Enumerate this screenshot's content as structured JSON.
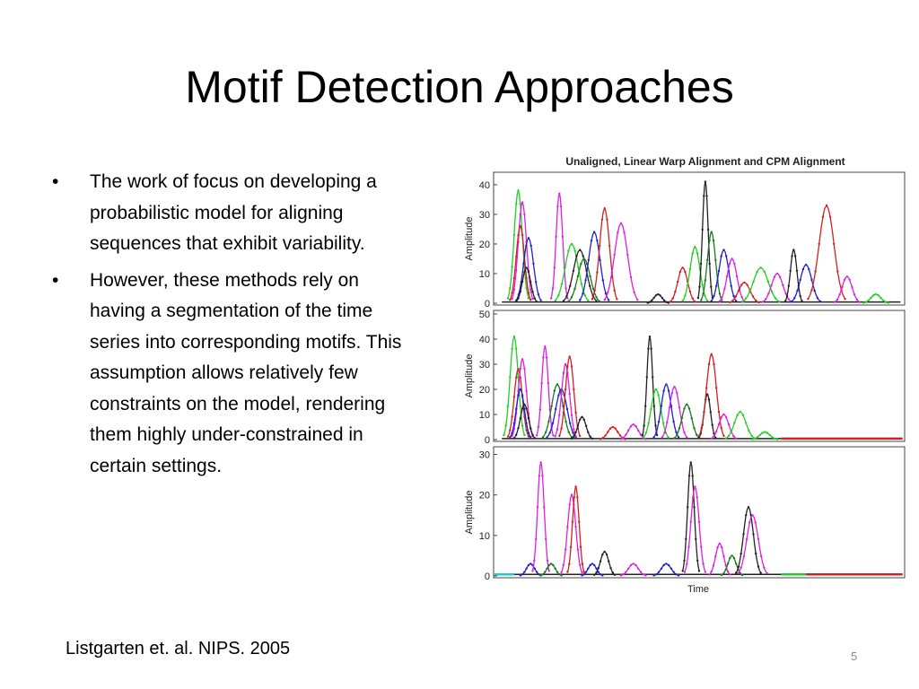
{
  "slide": {
    "title": "Motif Detection Approaches",
    "bullets": [
      "The work of focus on developing a probabilistic model for aligning sequences that exhibit variability.",
      "However, these methods rely on having a segmentation of the time series into corresponding motifs. This assumption allows relatively few constraints on the model, rendering them highly under-constrained in certain settings."
    ],
    "bullet_glyph": "•",
    "citation": "Listgarten et. al. NIPS. 2005",
    "page_number": "5"
  },
  "figure": {
    "title": "Unaligned, Linear Warp Alignment and CPM Alignment",
    "ylabel": "Amplitude",
    "xlabel": "Time",
    "series_colors": [
      "#d22020",
      "#1a7a1a",
      "#2020d0",
      "#222222",
      "#e020e0",
      "#20d020",
      "#20c8d8"
    ],
    "panels": [
      {
        "name": "unaligned",
        "yticks": [
          "0",
          "10",
          "20",
          "30",
          "40"
        ],
        "ylim": [
          0,
          43
        ],
        "peaks": [
          {
            "x": 0.06,
            "h": 38,
            "w": 0.01,
            "c": 5
          },
          {
            "x": 0.07,
            "h": 34,
            "w": 0.01,
            "c": 4
          },
          {
            "x": 0.065,
            "h": 26,
            "w": 0.01,
            "c": 0
          },
          {
            "x": 0.085,
            "h": 22,
            "w": 0.012,
            "c": 2
          },
          {
            "x": 0.08,
            "h": 12,
            "w": 0.01,
            "c": 3
          },
          {
            "x": 0.16,
            "h": 37,
            "w": 0.008,
            "c": 4
          },
          {
            "x": 0.19,
            "h": 20,
            "w": 0.016,
            "c": 5
          },
          {
            "x": 0.21,
            "h": 18,
            "w": 0.016,
            "c": 3
          },
          {
            "x": 0.22,
            "h": 15,
            "w": 0.015,
            "c": 1
          },
          {
            "x": 0.245,
            "h": 24,
            "w": 0.014,
            "c": 2
          },
          {
            "x": 0.27,
            "h": 32,
            "w": 0.012,
            "c": 0
          },
          {
            "x": 0.31,
            "h": 27,
            "w": 0.016,
            "c": 4
          },
          {
            "x": 0.4,
            "h": 3,
            "w": 0.01,
            "c": 3
          },
          {
            "x": 0.46,
            "h": 12,
            "w": 0.012,
            "c": 0
          },
          {
            "x": 0.49,
            "h": 19,
            "w": 0.012,
            "c": 5
          },
          {
            "x": 0.515,
            "h": 41,
            "w": 0.007,
            "c": 3
          },
          {
            "x": 0.53,
            "h": 24,
            "w": 0.01,
            "c": 1
          },
          {
            "x": 0.56,
            "h": 18,
            "w": 0.012,
            "c": 2
          },
          {
            "x": 0.58,
            "h": 15,
            "w": 0.012,
            "c": 4
          },
          {
            "x": 0.61,
            "h": 7,
            "w": 0.014,
            "c": 0
          },
          {
            "x": 0.65,
            "h": 12,
            "w": 0.018,
            "c": 5
          },
          {
            "x": 0.69,
            "h": 10,
            "w": 0.014,
            "c": 4
          },
          {
            "x": 0.73,
            "h": 18,
            "w": 0.008,
            "c": 3
          },
          {
            "x": 0.76,
            "h": 13,
            "w": 0.014,
            "c": 2
          },
          {
            "x": 0.81,
            "h": 33,
            "w": 0.018,
            "c": 0
          },
          {
            "x": 0.86,
            "h": 9,
            "w": 0.012,
            "c": 4
          },
          {
            "x": 0.93,
            "h": 3,
            "w": 0.012,
            "c": 5
          }
        ]
      },
      {
        "name": "linear-warp",
        "yticks": [
          "0",
          "10",
          "20",
          "30",
          "40",
          "50"
        ],
        "ylim": [
          0,
          50
        ],
        "peaks": [
          {
            "x": 0.05,
            "h": 41,
            "w": 0.01,
            "c": 5
          },
          {
            "x": 0.06,
            "h": 28,
            "w": 0.01,
            "c": 0
          },
          {
            "x": 0.07,
            "h": 32,
            "w": 0.01,
            "c": 4
          },
          {
            "x": 0.065,
            "h": 20,
            "w": 0.01,
            "c": 2
          },
          {
            "x": 0.075,
            "h": 14,
            "w": 0.01,
            "c": 3
          },
          {
            "x": 0.125,
            "h": 37,
            "w": 0.008,
            "c": 4
          },
          {
            "x": 0.155,
            "h": 22,
            "w": 0.014,
            "c": 1
          },
          {
            "x": 0.165,
            "h": 20,
            "w": 0.014,
            "c": 2
          },
          {
            "x": 0.175,
            "h": 30,
            "w": 0.01,
            "c": 4
          },
          {
            "x": 0.185,
            "h": 33,
            "w": 0.01,
            "c": 0
          },
          {
            "x": 0.215,
            "h": 9,
            "w": 0.01,
            "c": 3
          },
          {
            "x": 0.29,
            "h": 5,
            "w": 0.012,
            "c": 0
          },
          {
            "x": 0.34,
            "h": 6,
            "w": 0.012,
            "c": 4
          },
          {
            "x": 0.38,
            "h": 41,
            "w": 0.007,
            "c": 3
          },
          {
            "x": 0.395,
            "h": 20,
            "w": 0.012,
            "c": 5
          },
          {
            "x": 0.42,
            "h": 22,
            "w": 0.012,
            "c": 2
          },
          {
            "x": 0.44,
            "h": 21,
            "w": 0.012,
            "c": 4
          },
          {
            "x": 0.47,
            "h": 14,
            "w": 0.012,
            "c": 1
          },
          {
            "x": 0.52,
            "h": 18,
            "w": 0.008,
            "c": 3
          },
          {
            "x": 0.53,
            "h": 34,
            "w": 0.012,
            "c": 0
          },
          {
            "x": 0.56,
            "h": 10,
            "w": 0.012,
            "c": 4
          },
          {
            "x": 0.6,
            "h": 11,
            "w": 0.014,
            "c": 5
          },
          {
            "x": 0.66,
            "h": 3,
            "w": 0.012,
            "c": 5
          }
        ],
        "tail": {
          "from": 0.7,
          "color": 0
        }
      },
      {
        "name": "cpm-alignment",
        "yticks": [
          "0",
          "10",
          "20",
          "30"
        ],
        "ylim": [
          0,
          31
        ],
        "peaks": [
          {
            "x": 0.09,
            "h": 3,
            "w": 0.01,
            "c": 2
          },
          {
            "x": 0.115,
            "h": 28,
            "w": 0.008,
            "c": 4
          },
          {
            "x": 0.14,
            "h": 3,
            "w": 0.01,
            "c": 1
          },
          {
            "x": 0.19,
            "h": 20,
            "w": 0.01,
            "c": 4
          },
          {
            "x": 0.2,
            "h": 22,
            "w": 0.008,
            "c": 0
          },
          {
            "x": 0.24,
            "h": 3,
            "w": 0.01,
            "c": 2
          },
          {
            "x": 0.27,
            "h": 6,
            "w": 0.01,
            "c": 3
          },
          {
            "x": 0.34,
            "h": 3,
            "w": 0.012,
            "c": 4
          },
          {
            "x": 0.42,
            "h": 3,
            "w": 0.012,
            "c": 2
          },
          {
            "x": 0.48,
            "h": 28,
            "w": 0.008,
            "c": 3
          },
          {
            "x": 0.49,
            "h": 22,
            "w": 0.01,
            "c": 4
          },
          {
            "x": 0.55,
            "h": 8,
            "w": 0.01,
            "c": 4
          },
          {
            "x": 0.58,
            "h": 5,
            "w": 0.01,
            "c": 1
          },
          {
            "x": 0.62,
            "h": 17,
            "w": 0.012,
            "c": 3
          },
          {
            "x": 0.63,
            "h": 15,
            "w": 0.014,
            "c": 4
          }
        ],
        "head": {
          "to": 0.05,
          "color": 6
        },
        "tail_green": {
          "from": 0.7,
          "to": 0.76,
          "color": 5
        },
        "tail": {
          "from": 0.76,
          "color": 0
        }
      }
    ]
  }
}
